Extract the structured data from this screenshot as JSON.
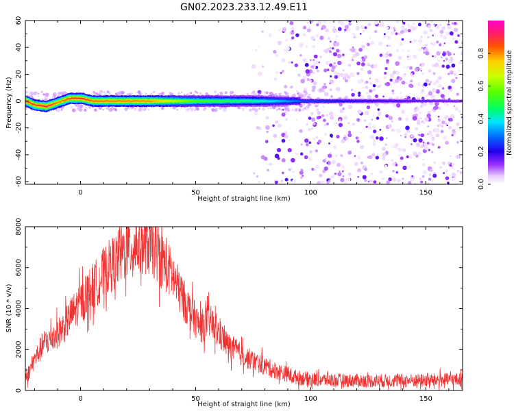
{
  "figure": {
    "title": "GN02.2023.233.12.49.E11"
  },
  "chart_data": [
    {
      "type": "heatmap",
      "xlabel": "Height of straight line (km)",
      "ylabel": "Frequency (Hz)",
      "xlim": [
        -24,
        166
      ],
      "ylim": [
        -62,
        60
      ],
      "xticks": [
        0,
        50,
        100,
        150
      ],
      "yticks": [
        -60,
        -40,
        -20,
        0,
        20,
        40,
        60
      ],
      "colorbar": {
        "label": "Normalized spectral amplitude",
        "range": [
          0,
          1
        ],
        "ticks": [
          "0.0",
          "0.2",
          "0.4",
          "0.6",
          "0.8"
        ],
        "colormap": "gist_ncar-like (white → violet → blue → cyan → green → yellow → orange → red → magenta)"
      },
      "ridge": {
        "description": "Dominant spectral ridge near 0 Hz",
        "points": [
          {
            "x": -24,
            "f": 0,
            "amp": 0.9
          },
          {
            "x": -20,
            "f": -3,
            "amp": 0.85
          },
          {
            "x": -15,
            "f": -4,
            "amp": 0.9
          },
          {
            "x": -10,
            "f": -1,
            "amp": 0.8
          },
          {
            "x": -5,
            "f": 2,
            "amp": 0.85
          },
          {
            "x": 0,
            "f": 2,
            "amp": 0.88
          },
          {
            "x": 5,
            "f": 0,
            "amp": 0.82
          },
          {
            "x": 30,
            "f": 0,
            "amp": 0.8
          },
          {
            "x": 50,
            "f": 0,
            "amp": 0.55
          },
          {
            "x": 75,
            "f": 0,
            "amp": 0.45
          },
          {
            "x": 95,
            "f": 0,
            "amp": 0.28
          },
          {
            "x": 125,
            "f": 0,
            "amp": 0.2
          },
          {
            "x": 166,
            "f": 0,
            "amp": 0.15
          }
        ]
      },
      "noise_region": {
        "x_start": 85,
        "x_end": 166,
        "amp_max": 0.1
      }
    },
    {
      "type": "line",
      "xlabel": "Height of straight line (km)",
      "ylabel": "SNR (10 * v/v)",
      "xlim": [
        -24,
        166
      ],
      "ylim": [
        0,
        8000
      ],
      "xticks": [
        0,
        50,
        100,
        150
      ],
      "yticks": [
        0,
        2000,
        4000,
        6000,
        8000
      ],
      "color": "#ee3333",
      "series": [
        {
          "x": [
            -24,
            -20,
            -16,
            -12,
            -8,
            -4,
            0,
            4,
            8,
            12,
            16,
            20,
            24,
            28,
            32,
            36,
            40,
            44,
            48,
            52,
            56,
            60,
            64,
            68,
            72,
            76,
            80,
            84,
            88,
            92,
            96,
            100,
            110,
            120,
            130,
            140,
            150,
            160,
            166
          ],
          "values": [
            500,
            1500,
            2300,
            2600,
            3000,
            3700,
            4300,
            4900,
            5400,
            6000,
            6400,
            6900,
            7100,
            7200,
            6900,
            6300,
            5600,
            4600,
            3800,
            3100,
            3400,
            2800,
            2200,
            1900,
            1600,
            1400,
            1200,
            1000,
            850,
            700,
            600,
            550,
            500,
            480,
            470,
            480,
            490,
            520,
            520
          ]
        }
      ]
    }
  ]
}
